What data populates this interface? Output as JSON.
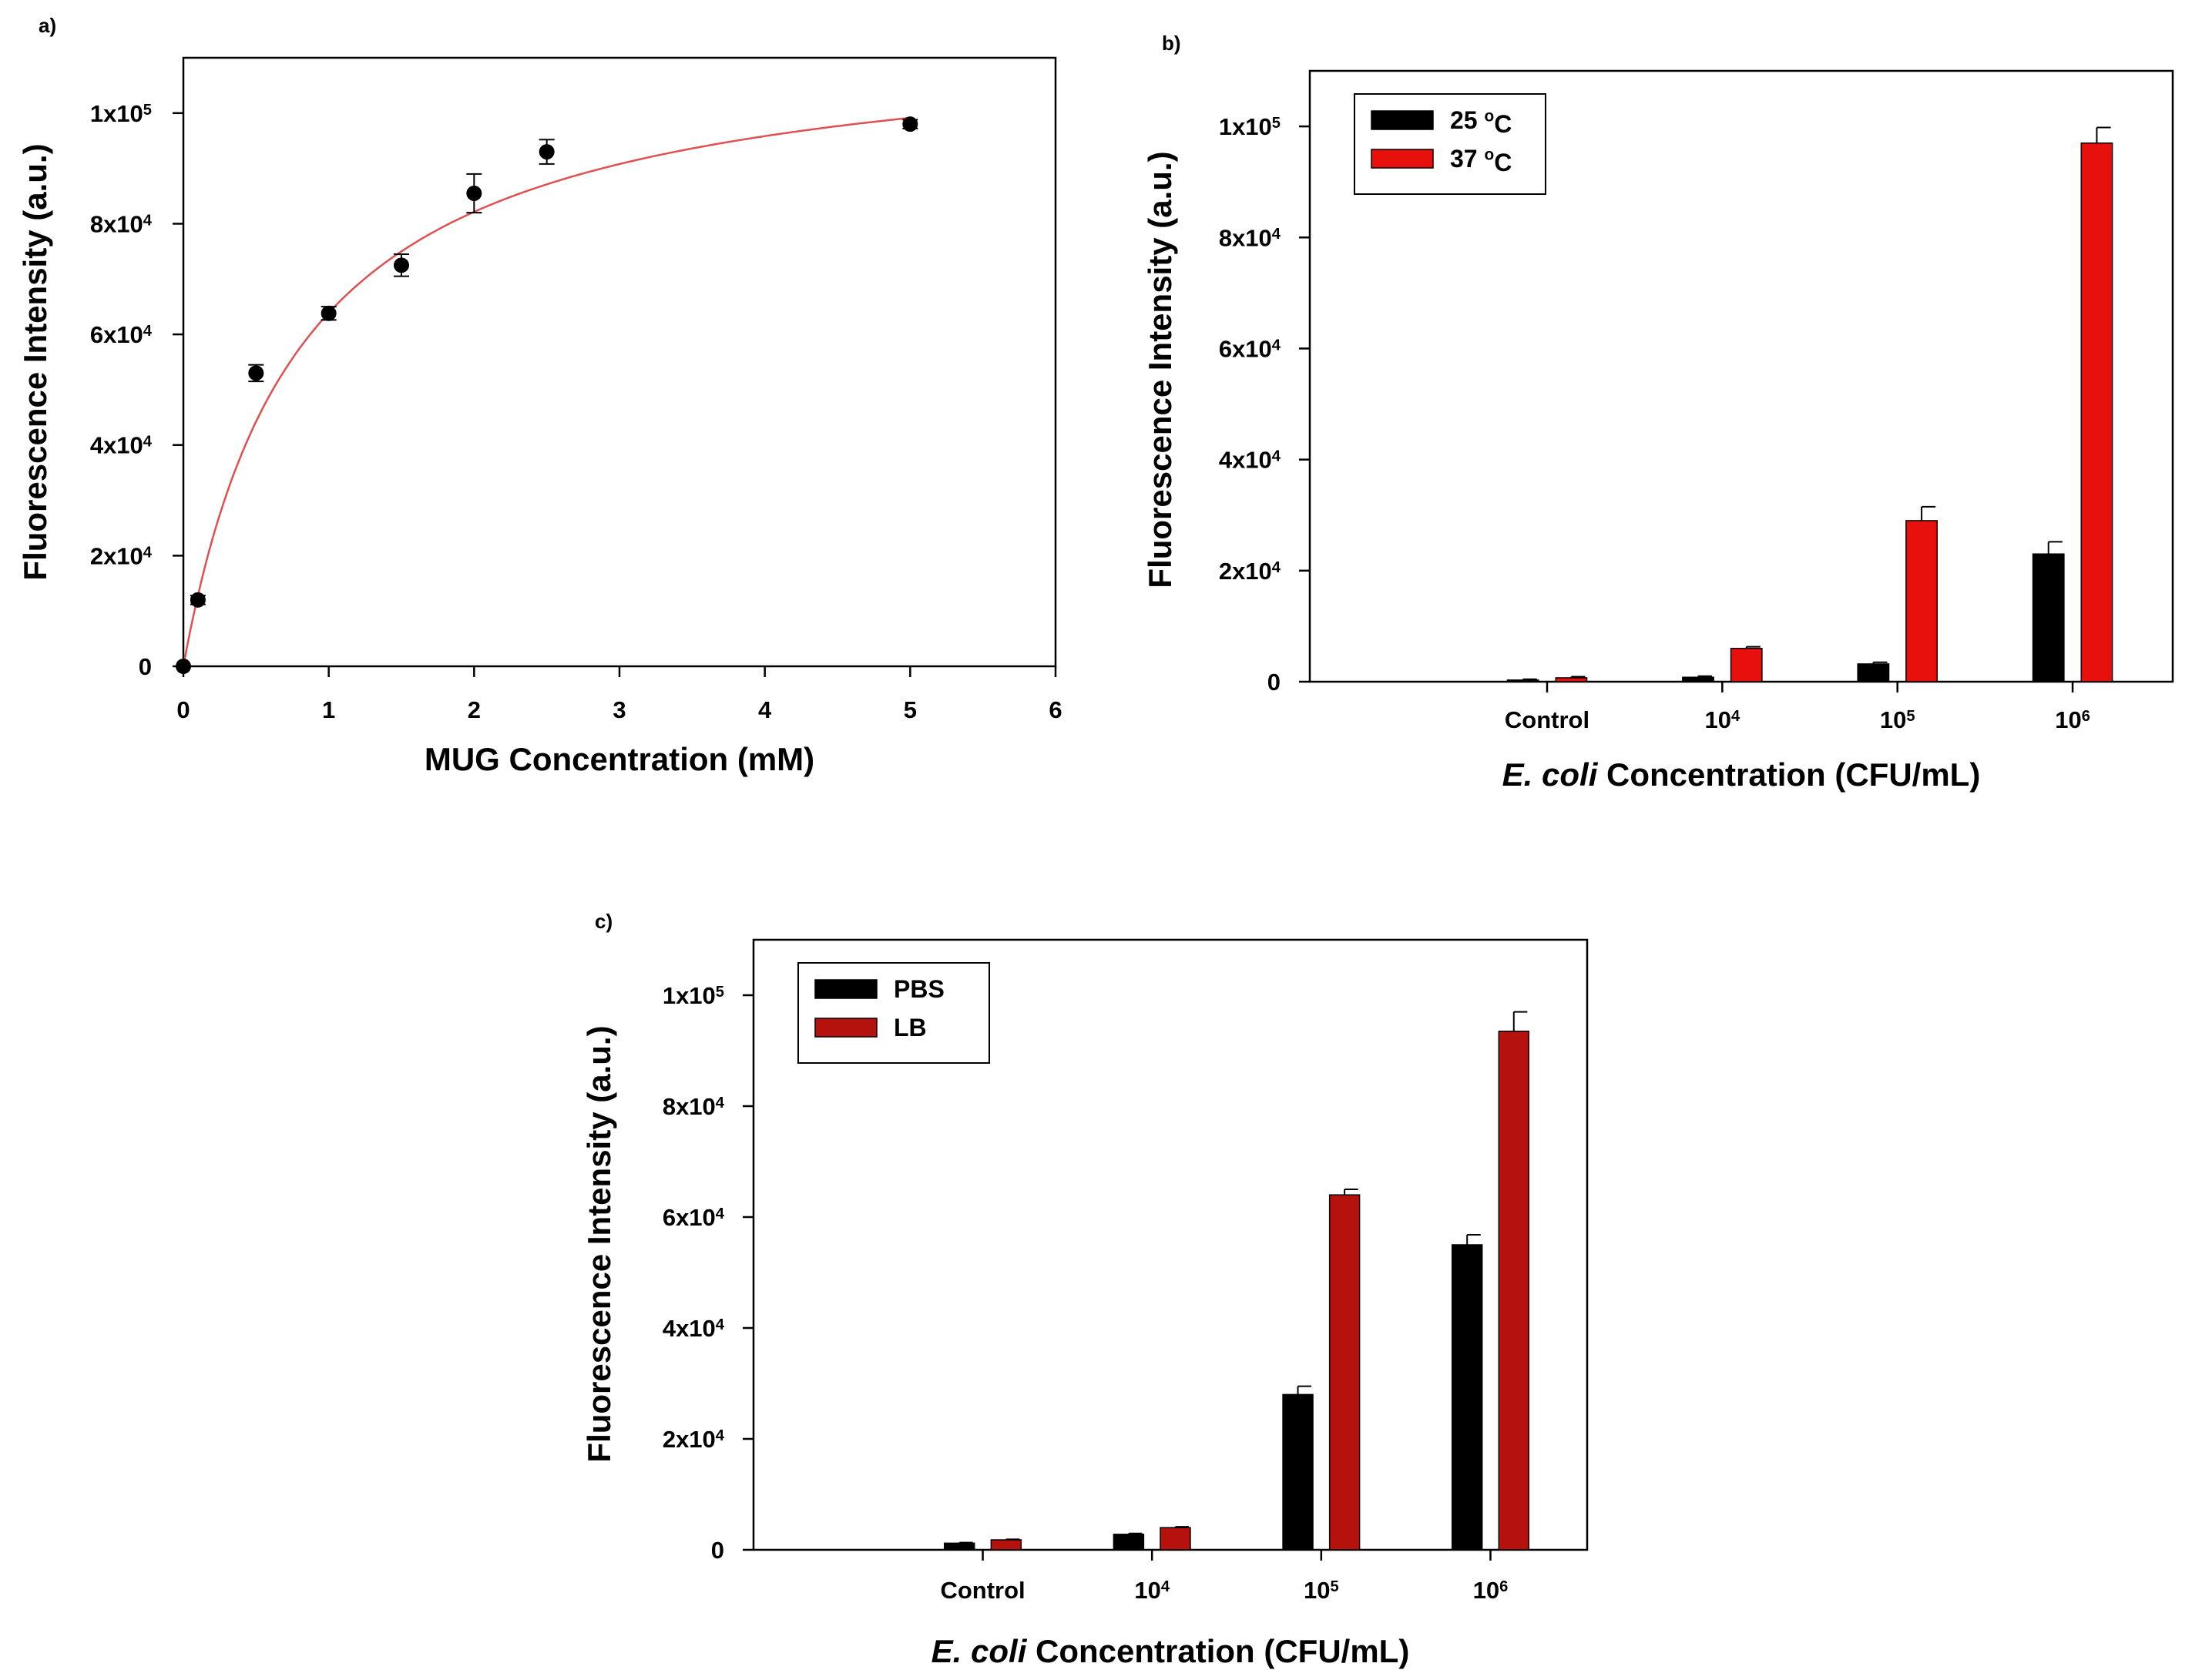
{
  "colors": {
    "black_series": "#000000",
    "red_series_b": "#e8100c",
    "red_series_c": "#b5120e",
    "fit_curve": "#e05050"
  },
  "chart_data": [
    {
      "panel": "a)",
      "type": "scatter",
      "xlabel": "MUG Concentration (mM)",
      "ylabel": "Fluorescence Intensity (a.u.)",
      "xlim": [
        0,
        6
      ],
      "ylim": [
        0,
        110000
      ],
      "xticks": [
        0,
        1,
        2,
        3,
        4,
        5,
        6
      ],
      "yticks": [
        {
          "value": 0,
          "mantissa": "0",
          "exp": ""
        },
        {
          "value": 20000,
          "mantissa": "2x10",
          "exp": "4"
        },
        {
          "value": 40000,
          "mantissa": "4x10",
          "exp": "4"
        },
        {
          "value": 60000,
          "mantissa": "6x10",
          "exp": "4"
        },
        {
          "value": 80000,
          "mantissa": "8x10",
          "exp": "4"
        },
        {
          "value": 100000,
          "mantissa": "1x10",
          "exp": "5"
        }
      ],
      "points": [
        {
          "x": 0,
          "y": 0,
          "err": 0
        },
        {
          "x": 0.1,
          "y": 12000,
          "err": 800
        },
        {
          "x": 0.5,
          "y": 53000,
          "err": 1500
        },
        {
          "x": 1.0,
          "y": 63800,
          "err": 1200
        },
        {
          "x": 1.5,
          "y": 72500,
          "err": 2000
        },
        {
          "x": 2.0,
          "y": 85500,
          "err": 3500
        },
        {
          "x": 2.5,
          "y": 93000,
          "err": 2200
        },
        {
          "x": 5.0,
          "y": 98000,
          "err": 800
        }
      ],
      "fit": {
        "type": "michaelis-menten",
        "vmax": 115000,
        "km": 0.8
      },
      "grid": false
    },
    {
      "panel": "b)",
      "type": "bar",
      "xlabel_italic": "E. coli",
      "xlabel_rest": " Concentration (CFU/mL)",
      "ylabel": "Fluorescence Intensity (a.u.)",
      "ylim": [
        0,
        110000
      ],
      "categories": [
        {
          "mantissa": "Control",
          "exp": ""
        },
        {
          "mantissa": "10",
          "exp": "4"
        },
        {
          "mantissa": "10",
          "exp": "5"
        },
        {
          "mantissa": "10",
          "exp": "6"
        }
      ],
      "yticks": [
        {
          "value": 0,
          "mantissa": "0",
          "exp": ""
        },
        {
          "value": 20000,
          "mantissa": "2x10",
          "exp": "4"
        },
        {
          "value": 40000,
          "mantissa": "4x10",
          "exp": "4"
        },
        {
          "value": 60000,
          "mantissa": "6x10",
          "exp": "4"
        },
        {
          "value": 80000,
          "mantissa": "8x10",
          "exp": "4"
        },
        {
          "value": 100000,
          "mantissa": "1x10",
          "exp": "5"
        }
      ],
      "series": [
        {
          "name_main": "25 ",
          "name_sup": "o",
          "name_tail": "C",
          "color": "#000000",
          "values": [
            300,
            800,
            3200,
            23000
          ],
          "errors": [
            150,
            200,
            300,
            2200
          ]
        },
        {
          "name_main": "37 ",
          "name_sup": "o",
          "name_tail": "C",
          "color": "#e8100c",
          "values": [
            700,
            6000,
            29000,
            97000
          ],
          "errors": [
            200,
            300,
            2500,
            2800
          ]
        }
      ],
      "legend": "top-left",
      "grid": false
    },
    {
      "panel": "c)",
      "type": "bar",
      "xlabel_italic": "E. coli",
      "xlabel_rest": " Concentration (CFU/mL)",
      "ylabel": "Fluorescence Intensity (a.u.)",
      "ylim": [
        0,
        110000
      ],
      "categories": [
        {
          "mantissa": "Control",
          "exp": ""
        },
        {
          "mantissa": "10",
          "exp": "4"
        },
        {
          "mantissa": "10",
          "exp": "5"
        },
        {
          "mantissa": "10",
          "exp": "6"
        }
      ],
      "yticks": [
        {
          "value": 0,
          "mantissa": "0",
          "exp": ""
        },
        {
          "value": 20000,
          "mantissa": "2x10",
          "exp": "4"
        },
        {
          "value": 40000,
          "mantissa": "4x10",
          "exp": "4"
        },
        {
          "value": 60000,
          "mantissa": "6x10",
          "exp": "4"
        },
        {
          "value": 80000,
          "mantissa": "8x10",
          "exp": "4"
        },
        {
          "value": 100000,
          "mantissa": "1x10",
          "exp": "5"
        }
      ],
      "series": [
        {
          "name_main": "PBS",
          "name_sup": "",
          "name_tail": "",
          "color": "#000000",
          "values": [
            1200,
            2800,
            28000,
            55000
          ],
          "errors": [
            100,
            150,
            1500,
            1800
          ]
        },
        {
          "name_main": "LB",
          "name_sup": "",
          "name_tail": "",
          "color": "#b5120e",
          "values": [
            1800,
            4000,
            64000,
            93500
          ],
          "errors": [
            100,
            150,
            1000,
            3500
          ]
        }
      ],
      "legend": "top-left",
      "grid": false
    }
  ]
}
